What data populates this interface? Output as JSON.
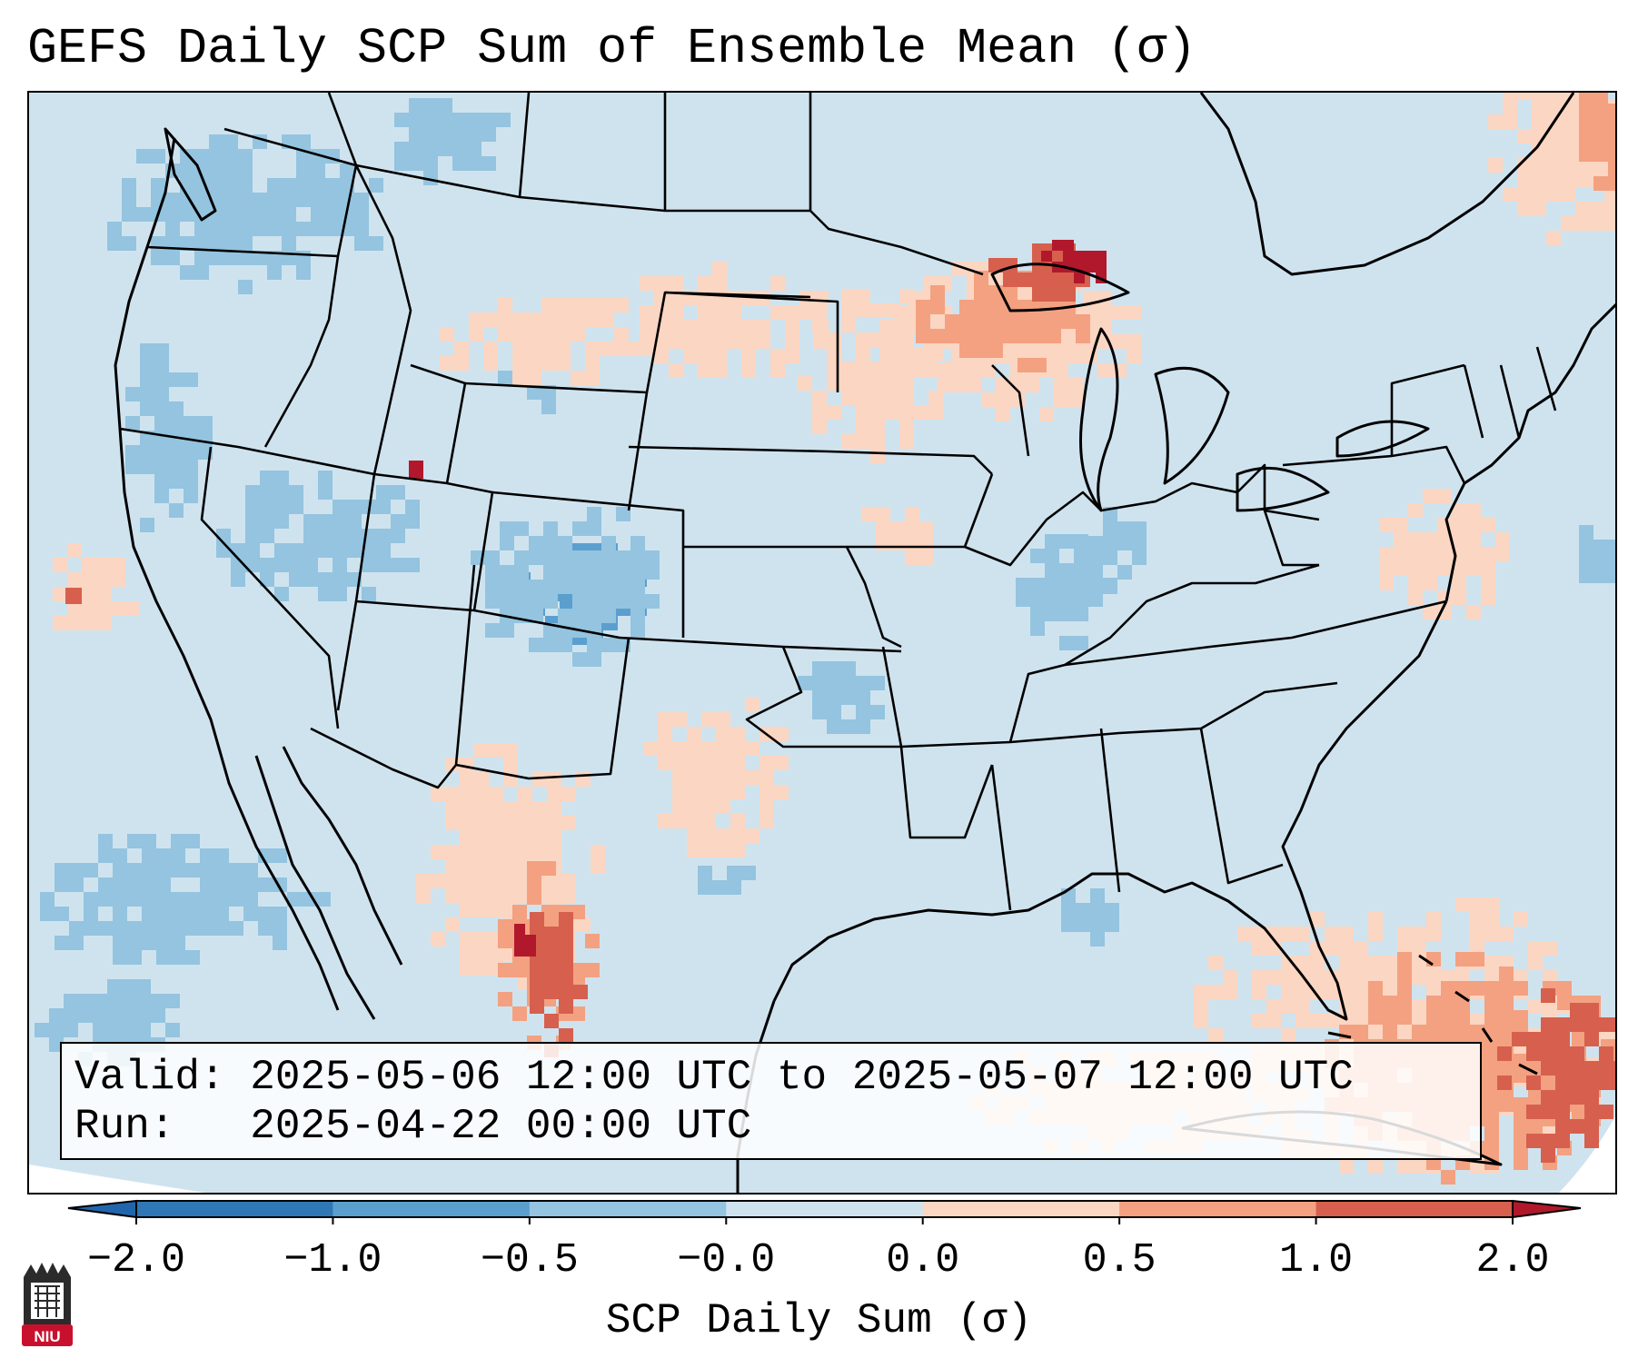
{
  "title": "GEFS Daily SCP Sum of Ensemble Mean (σ)",
  "info": {
    "valid_label": "Valid:",
    "valid_value": "2025-05-06 12:00 UTC to 2025-05-07 12:00 UTC",
    "run_label": "Run:",
    "run_value": "2025-04-22 00:00 UTC"
  },
  "colorbar": {
    "label": "SCP Daily Sum (σ)",
    "ticks": [
      "−2.0",
      "−1.0",
      "−0.5",
      "−0.0",
      "0.0",
      "0.5",
      "1.0",
      "2.0"
    ],
    "bins": [
      {
        "color": "#2f78b5"
      },
      {
        "color": "#5b9fcf"
      },
      {
        "color": "#94c4df"
      },
      {
        "color": "#cfe3ef"
      },
      {
        "color": "#fbd6c2"
      },
      {
        "color": "#f3a181"
      },
      {
        "color": "#d6604d"
      }
    ],
    "under_color": "#2166ac",
    "over_color": "#b2182b"
  },
  "logo": {
    "text": "NIU",
    "color": "#c8102e"
  },
  "colors": {
    "background": "#cfe3ef",
    "border": "#000000"
  }
}
